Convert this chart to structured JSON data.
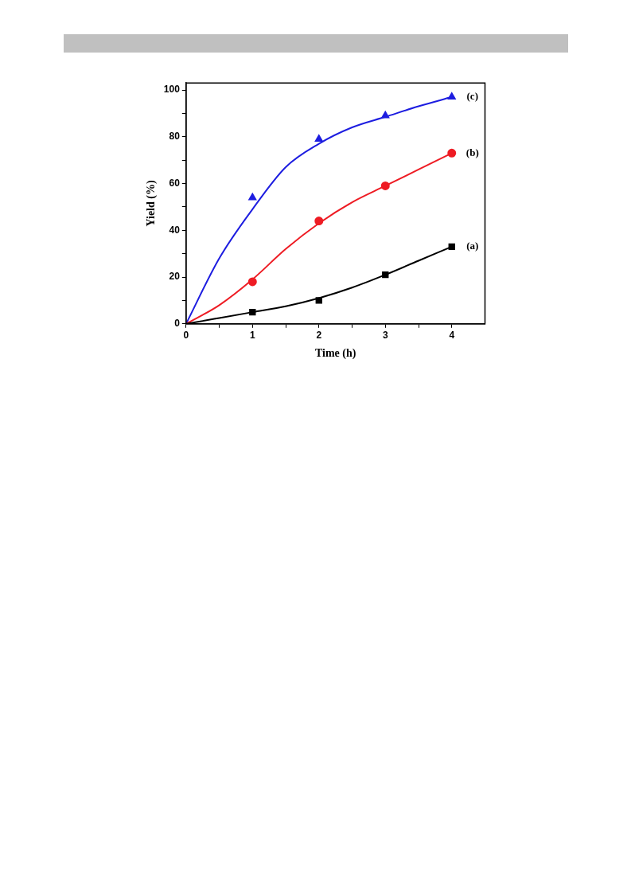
{
  "chart_data": {
    "type": "scatter",
    "xlabel": "Time (h)",
    "ylabel": "Yield (%)",
    "xlim": [
      0,
      4.5
    ],
    "ylim": [
      0,
      103
    ],
    "xticks": [
      0,
      {
        "value": 0.5,
        "label": null
      },
      1,
      {
        "value": 1.5,
        "label": null
      },
      2,
      {
        "value": 2.5,
        "label": null
      },
      3,
      {
        "value": 3.5,
        "label": null
      },
      4
    ],
    "yticks": [
      0,
      {
        "value": 10,
        "label": null
      },
      20,
      {
        "value": 30,
        "label": null
      },
      40,
      {
        "value": 50,
        "label": null
      },
      60,
      {
        "value": 70,
        "label": null
      },
      80,
      {
        "value": 90,
        "label": null
      },
      100
    ],
    "grid": false,
    "legend": false,
    "series": [
      {
        "type": "scatter",
        "marker": "square",
        "color": "#000000",
        "x": [
          1,
          2,
          3,
          4
        ],
        "values": [
          5,
          10,
          21,
          33
        ]
      },
      {
        "type": "scatter",
        "marker": "circle",
        "color": "#ee1c24",
        "x": [
          1,
          2,
          3,
          4
        ],
        "values": [
          18,
          44,
          59,
          73
        ]
      },
      {
        "type": "scatter",
        "marker": "triangle",
        "color": "#1d1de0",
        "x": [
          1,
          2,
          3,
          4
        ],
        "values": [
          54,
          79,
          89,
          97
        ]
      },
      {
        "type": "line",
        "name": "(a)",
        "marker": "none",
        "color": "#000000",
        "x": [
          0,
          0.5,
          1,
          1.5,
          2,
          2.5,
          3,
          3.5,
          4
        ],
        "values": [
          0,
          2.5,
          5,
          7.5,
          11,
          15.5,
          21,
          27,
          33
        ]
      },
      {
        "type": "line",
        "name": "(b)",
        "marker": "none",
        "color": "#ee1c24",
        "x": [
          0,
          0.5,
          1,
          1.5,
          2,
          2.5,
          3,
          3.5,
          4
        ],
        "values": [
          0,
          8,
          19,
          32,
          43,
          52,
          59,
          66,
          73
        ]
      },
      {
        "type": "line",
        "name": "(c)",
        "marker": "none",
        "color": "#1d1de0",
        "x": [
          0,
          0.5,
          1,
          1.5,
          2,
          2.5,
          3,
          3.5,
          4
        ],
        "values": [
          0,
          28,
          49,
          67,
          77,
          84,
          88.5,
          93,
          97
        ]
      }
    ]
  }
}
